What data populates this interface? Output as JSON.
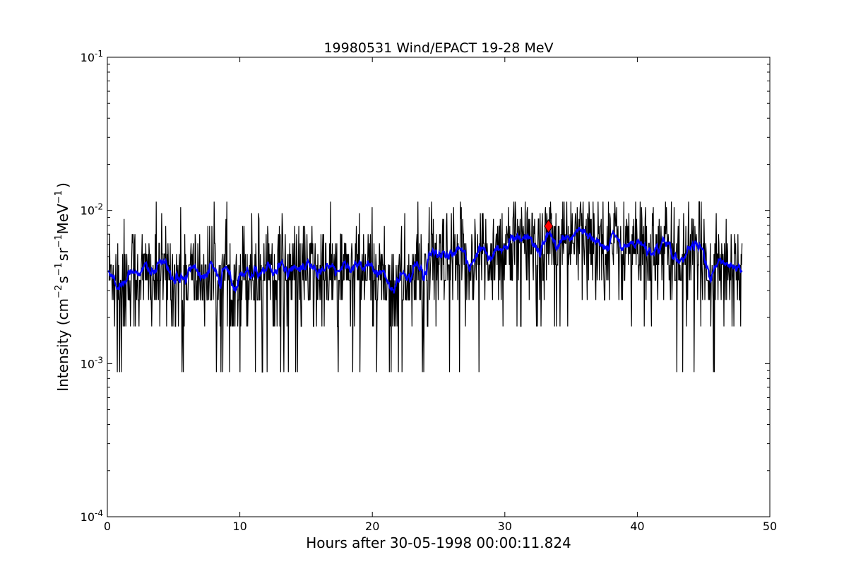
{
  "chart_data": {
    "type": "line",
    "title": "19980531 Wind/EPACT 19-28 MeV",
    "xlabel": "Hours after 30-05-1998 00:00:11.824",
    "ylabel": {
      "prefix": "Intensity (cm",
      "sup1": "−2",
      "mid1": "s",
      "sup2": "−1",
      "mid2": "sr",
      "sup3": "−1",
      "mid3": "MeV",
      "sup4": "−1",
      "suffix": ")"
    },
    "xlim": [
      0,
      50
    ],
    "ylim": [
      0.0001,
      0.1
    ],
    "yscale": "log",
    "grid": false,
    "xticks": [
      {
        "value": 0,
        "label": "0"
      },
      {
        "value": 10,
        "label": "10"
      },
      {
        "value": 20,
        "label": "20"
      },
      {
        "value": 30,
        "label": "30"
      },
      {
        "value": 40,
        "label": "40"
      },
      {
        "value": 50,
        "label": "50"
      }
    ],
    "yticks": [
      {
        "value": 0.0001,
        "base": "10",
        "exp": "-4"
      },
      {
        "value": 0.001,
        "base": "10",
        "exp": "-3"
      },
      {
        "value": 0.01,
        "base": "10",
        "exp": "-2"
      },
      {
        "value": 0.1,
        "base": "10",
        "exp": "-1"
      }
    ],
    "raw_series": {
      "color": "#000000",
      "t_start": 0.1,
      "t_end": 47.9,
      "levels": [
        0.00088,
        0.00175,
        0.0026,
        0.0035,
        0.0044,
        0.0052,
        0.0061,
        0.007,
        0.0079,
        0.0088,
        0.0096,
        0.0105,
        0.0114
      ],
      "trend": [
        [
          0,
          0.0037
        ],
        [
          5,
          0.0036
        ],
        [
          10,
          0.0037
        ],
        [
          12,
          0.0045
        ],
        [
          15,
          0.0036
        ],
        [
          20,
          0.0039
        ],
        [
          22,
          0.0034
        ],
        [
          25,
          0.0041
        ],
        [
          28,
          0.0048
        ],
        [
          30,
          0.0058
        ],
        [
          33,
          0.0063
        ],
        [
          35,
          0.006
        ],
        [
          37,
          0.0066
        ],
        [
          40,
          0.0055
        ],
        [
          43,
          0.0048
        ],
        [
          46,
          0.0044
        ],
        [
          48,
          0.0041
        ]
      ]
    },
    "smooth_series": {
      "color": "#0000ff",
      "t_start": 0.1,
      "t_end": 47.9
    },
    "peak_marker": {
      "x": 33.3,
      "y": 0.0079,
      "color": "#ff0000",
      "shape": "diamond"
    }
  }
}
